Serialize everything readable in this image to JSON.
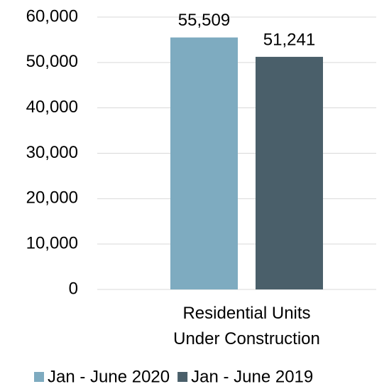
{
  "chart_data": {
    "type": "bar",
    "categories": [
      "Residential Units\nUnder Construction"
    ],
    "series": [
      {
        "name": "Jan - June 2020",
        "color": "#7eabc0",
        "values": [
          55509
        ],
        "value_labels": [
          "55,509"
        ]
      },
      {
        "name": "Jan - June 2019",
        "color": "#4a5f6a",
        "values": [
          51241
        ],
        "value_labels": [
          "51,241"
        ]
      }
    ],
    "ylim": [
      0,
      60000
    ],
    "yticks": [
      0,
      {
        "value": 10000,
        "label": "10,000"
      },
      {
        "value": 20000,
        "label": "20,000"
      },
      {
        "value": 30000,
        "label": "30,000"
      },
      {
        "value": 40000,
        "label": "40,000"
      },
      {
        "value": 50000,
        "label": "50,000"
      },
      {
        "value": 60000,
        "label": "60,000"
      }
    ],
    "grid": true,
    "legend": "bottom"
  }
}
